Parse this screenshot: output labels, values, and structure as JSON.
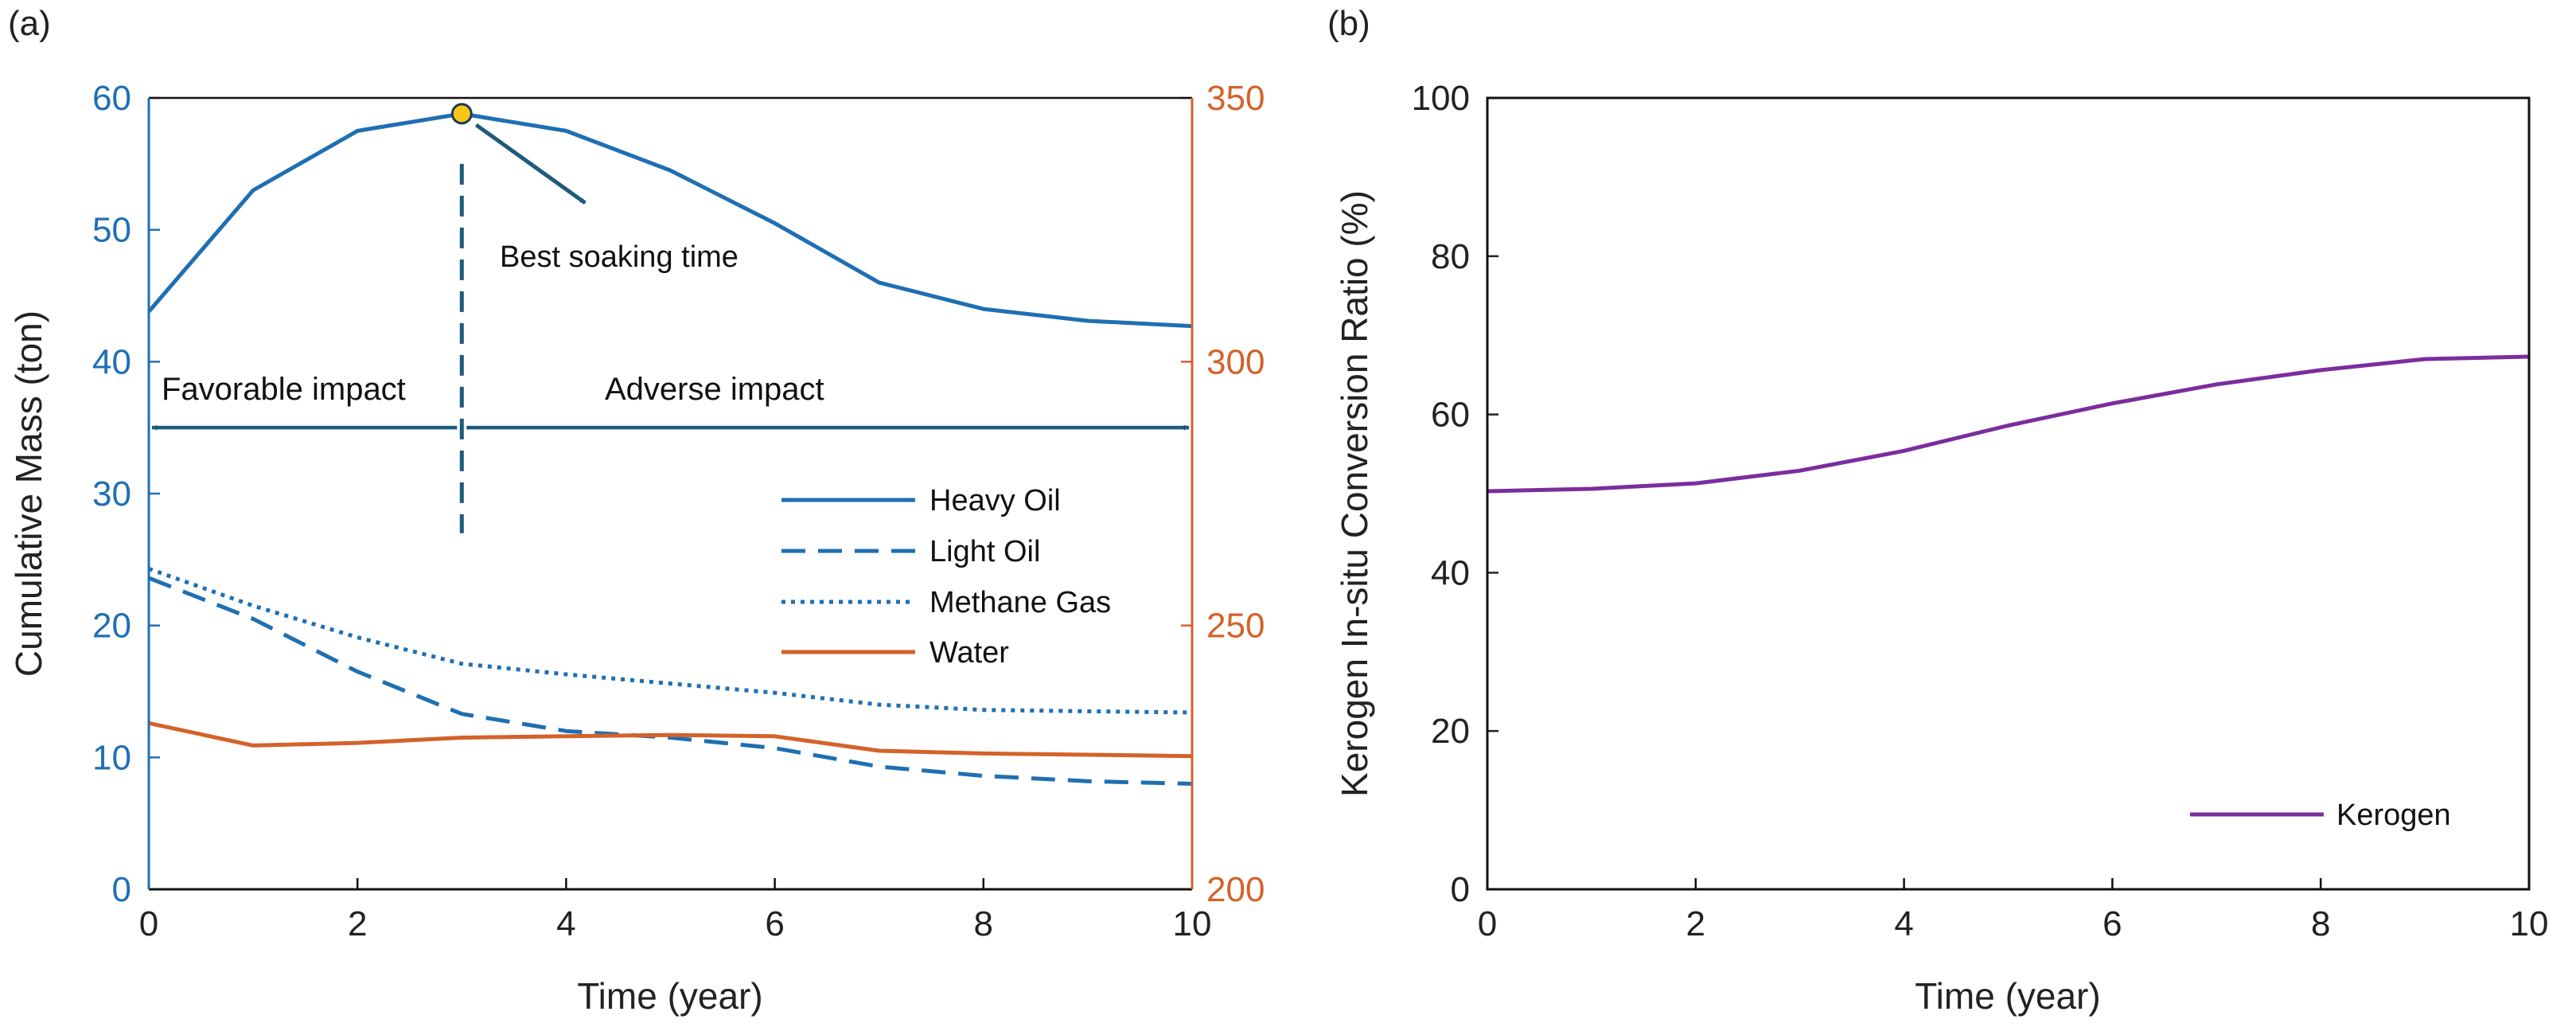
{
  "chart_data": [
    {
      "panel_label": "(a)",
      "type": "line",
      "x": [
        0,
        1,
        2,
        3,
        4,
        5,
        6,
        7,
        8,
        9,
        10
      ],
      "xlabel": "Time (year)",
      "xlim": [
        0,
        10
      ],
      "xticks": [
        "0",
        "2",
        "4",
        "6",
        "8",
        "10"
      ],
      "ylabel_left": "Cumulative Mass (ton)",
      "ylim_left": [
        0,
        60
      ],
      "yticks_left": [
        "0",
        "10",
        "20",
        "30",
        "40",
        "50",
        "60"
      ],
      "ylim_right": [
        200,
        350
      ],
      "yticks_right": [
        "200",
        "250",
        "300",
        "350"
      ],
      "series": [
        {
          "name": "Heavy Oil",
          "axis": "left",
          "style": "solid",
          "color": "#1f6fb2",
          "values": [
            43.8,
            53.0,
            57.5,
            58.8,
            57.5,
            54.5,
            50.5,
            46.0,
            44.0,
            43.1,
            42.7
          ]
        },
        {
          "name": "Light Oil",
          "axis": "left",
          "style": "dashed",
          "color": "#1f6fb2",
          "values": [
            23.6,
            20.5,
            16.5,
            13.3,
            12.0,
            11.5,
            10.7,
            9.3,
            8.6,
            8.2,
            8.0
          ]
        },
        {
          "name": "Methane Gas",
          "axis": "left",
          "style": "dotted",
          "color": "#1f6fb2",
          "values": [
            24.3,
            21.5,
            19.1,
            17.1,
            16.3,
            15.6,
            14.9,
            14.0,
            13.6,
            13.5,
            13.4
          ]
        },
        {
          "name": "Water",
          "axis": "left",
          "style": "solid",
          "color": "#d4622a",
          "values": [
            12.6,
            10.9,
            11.1,
            11.5,
            11.6,
            11.7,
            11.6,
            10.5,
            10.3,
            10.2,
            10.1
          ]
        }
      ],
      "annotations": {
        "best_point": {
          "x": 3,
          "y": 58.8
        },
        "best_label": "Best soaking time",
        "favorable_label": "Favorable impact",
        "adverse_label": "Adverse impact",
        "divider_x": 3,
        "divider_top": 55,
        "divider_bottom": 27,
        "arrow_y": 35
      },
      "legend_position": "middle-right"
    },
    {
      "panel_label": "(b)",
      "type": "line",
      "x": [
        0,
        1,
        2,
        3,
        4,
        5,
        6,
        7,
        8,
        9,
        10
      ],
      "xlabel": "Time (year)",
      "xlim": [
        0,
        10
      ],
      "xticks": [
        "0",
        "2",
        "4",
        "6",
        "8",
        "10"
      ],
      "ylabel": "Kerogen In-situ Conversion Ratio (%)",
      "ylim": [
        0,
        100
      ],
      "yticks": [
        "0",
        "20",
        "40",
        "60",
        "80",
        "100"
      ],
      "series": [
        {
          "name": "Kerogen",
          "style": "solid",
          "color": "#7b2d9e",
          "values": [
            50.3,
            50.6,
            51.3,
            52.9,
            55.4,
            58.6,
            61.4,
            63.8,
            65.6,
            67.0,
            67.3
          ]
        }
      ],
      "legend_position": "bottom-right"
    }
  ]
}
